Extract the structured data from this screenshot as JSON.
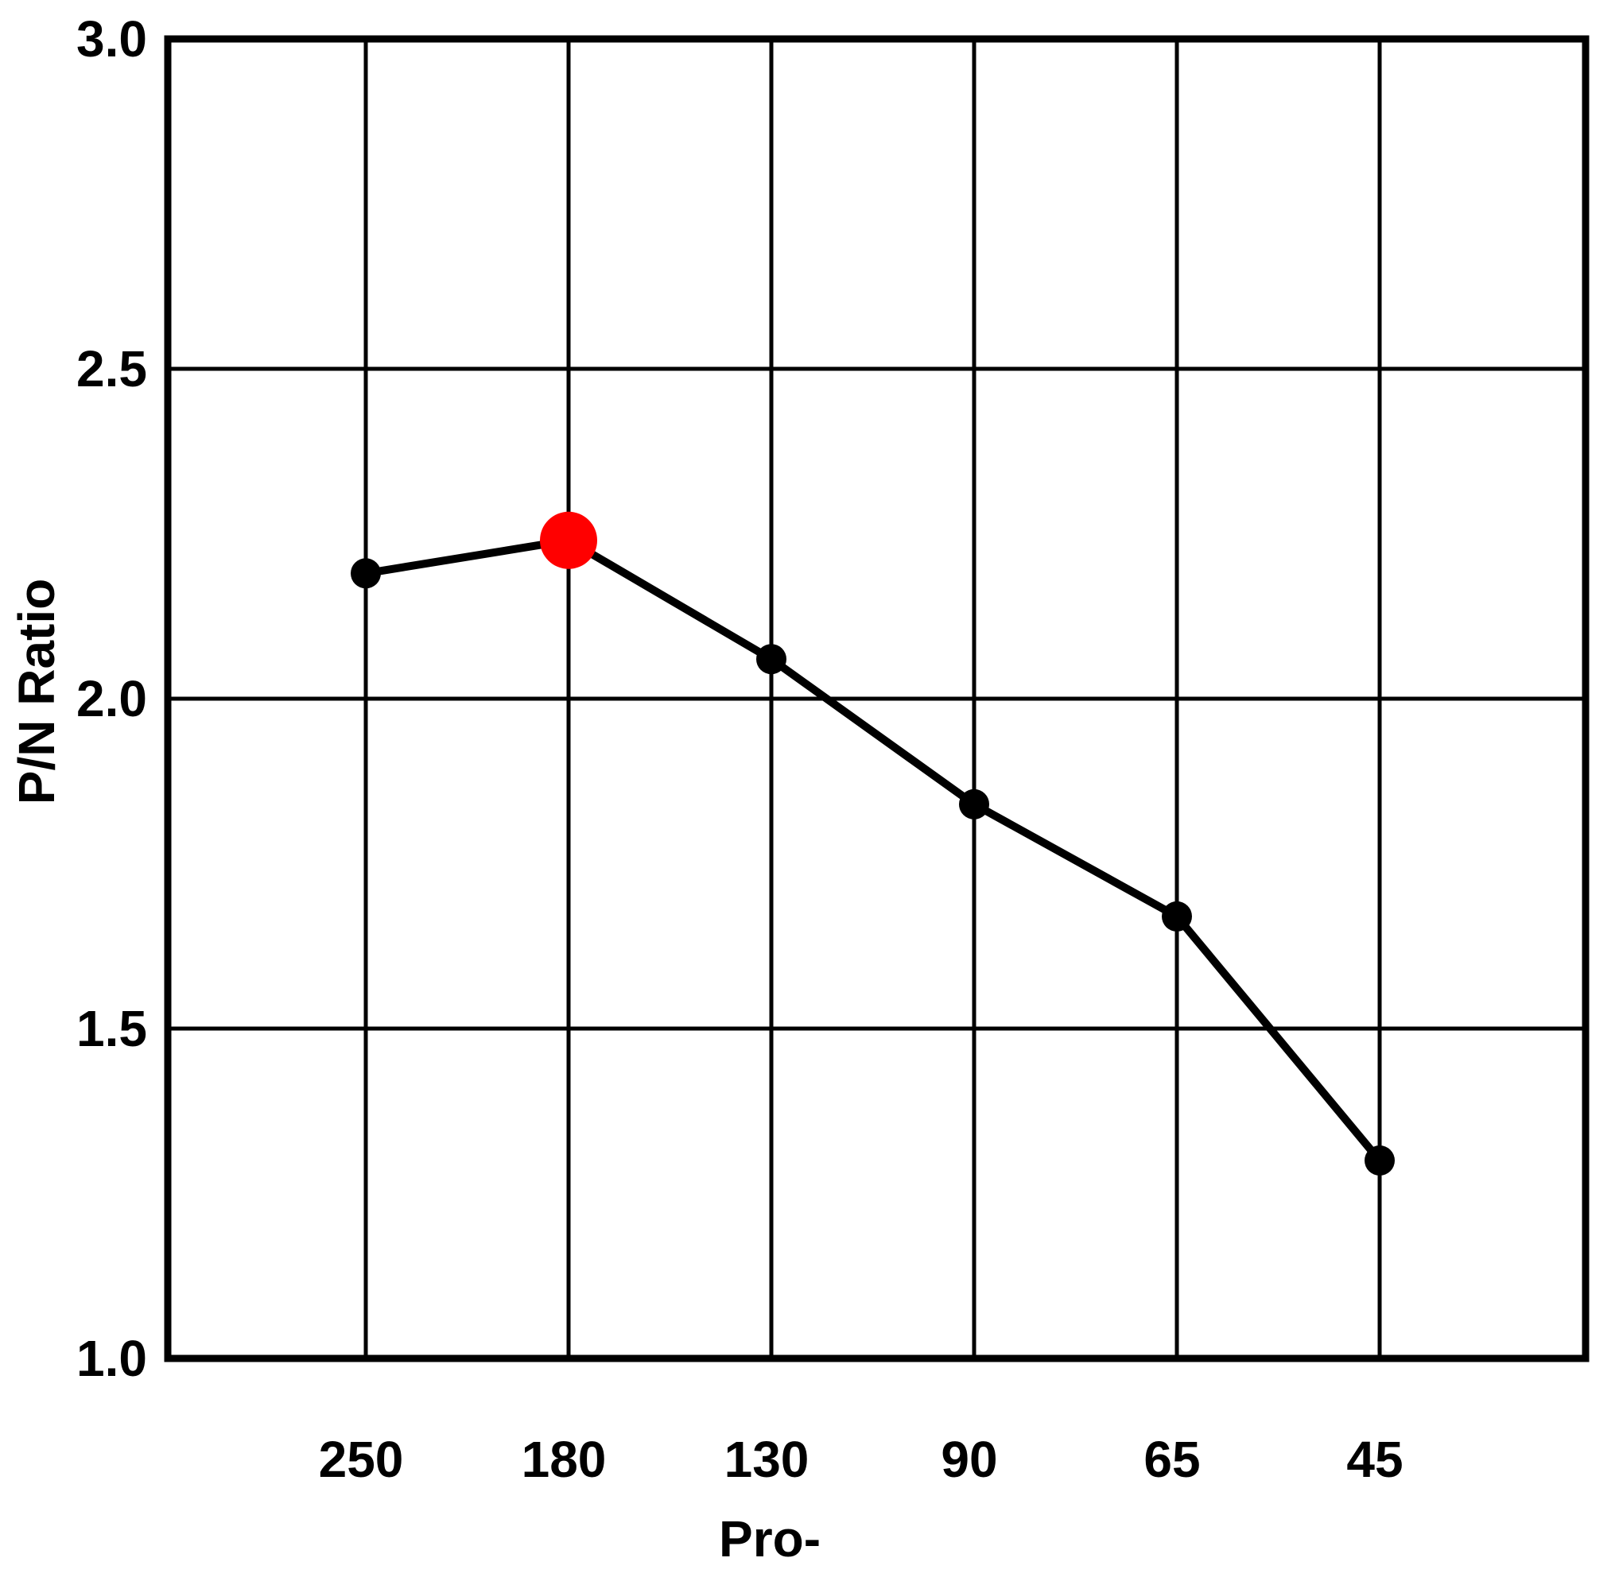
{
  "chart_data": {
    "type": "line",
    "categories": [
      "250",
      "180",
      "130",
      "90",
      "65",
      "45"
    ],
    "series": [
      {
        "values": [
          2.19,
          2.24,
          2.06,
          1.84,
          1.67,
          1.3
        ]
      }
    ],
    "highlight": {
      "category": "180",
      "color": "#ff0000"
    },
    "yticks": [
      "1.0",
      "1.5",
      "2.0",
      "2.5",
      "3.0"
    ],
    "ylim": [
      1.0,
      3.0
    ],
    "ylabel": "P/N Ratio",
    "xlabel": "Pro-",
    "grid": true,
    "line_color": "#000000",
    "point_color": "#000000"
  }
}
